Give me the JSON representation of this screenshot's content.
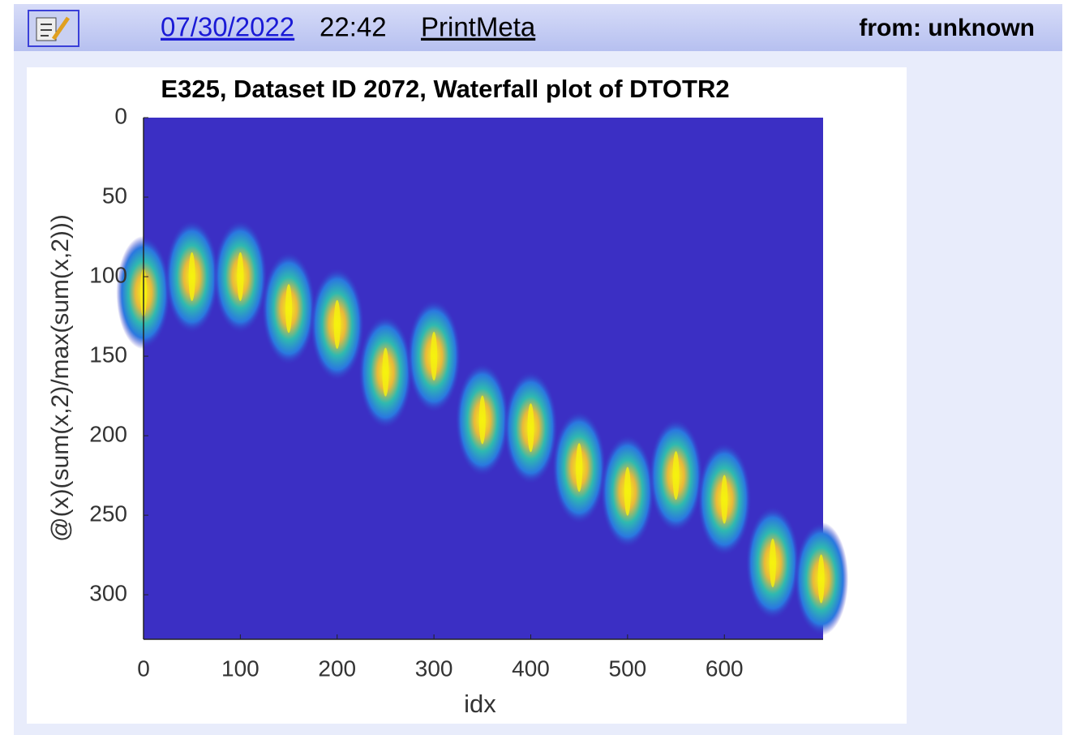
{
  "header": {
    "date": "07/30/2022",
    "time": "22:42",
    "link": "PrintMeta",
    "from": "from: unknown"
  },
  "chart_data": {
    "type": "heatmap",
    "title": "E325, Dataset ID 2072, Waterfall plot of DTOTR2",
    "x_label": "idx",
    "y_label": "@(x)(sum(x,2)/max(sum(x,2)))",
    "x": [
      0,
      50,
      100,
      150,
      200,
      250,
      300,
      350,
      400,
      450,
      500,
      550,
      600,
      650,
      700
    ],
    "values": [
      110,
      100,
      100,
      120,
      130,
      160,
      150,
      190,
      195,
      220,
      235,
      225,
      240,
      280,
      290
    ],
    "xlim": [
      0,
      702
    ],
    "ylim": [
      0,
      328
    ],
    "xticks": [
      0,
      100,
      200,
      300,
      400,
      500,
      600
    ],
    "yticks": [
      0,
      50,
      100,
      150,
      200,
      250,
      300
    ],
    "y_reversed": true,
    "background": "#3b2fc4",
    "color": "#f5f20e"
  }
}
